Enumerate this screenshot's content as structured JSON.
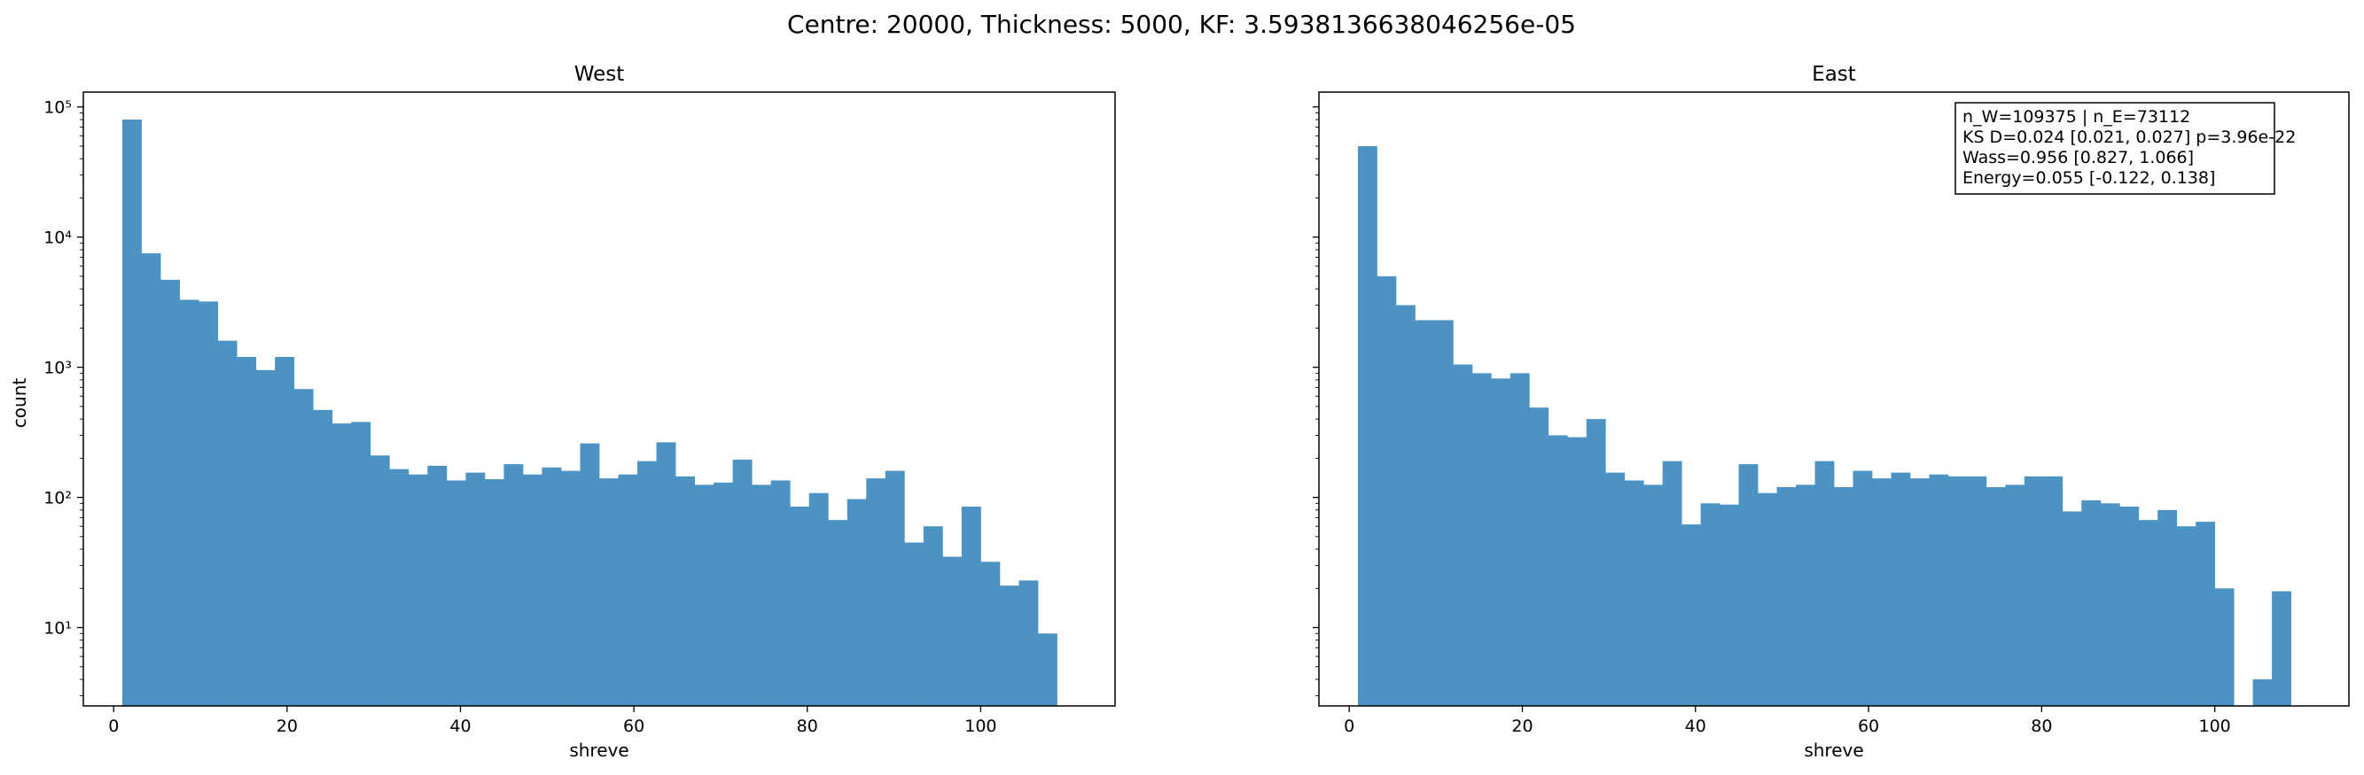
{
  "figure": {
    "suptitle": "Centre: 20000, Thickness: 5000, KF: 3.5938136638046256e-05"
  },
  "chart_data": [
    {
      "type": "bar",
      "title": "West",
      "xlabel": "shreve",
      "ylabel": "count",
      "yscale": "log",
      "xlim": [
        -3.5,
        115.5
      ],
      "ylim": [
        2.5,
        130000
      ],
      "xticks": [
        0,
        20,
        40,
        60,
        80,
        100
      ],
      "yticks": [
        {
          "value": 10,
          "label": "10¹"
        },
        {
          "value": 100,
          "label": "10²"
        },
        {
          "value": 1000,
          "label": "10³"
        },
        {
          "value": 10000,
          "label": "10⁴"
        },
        {
          "value": 100000,
          "label": "10⁵"
        }
      ],
      "bin_edges": [
        1,
        3.2,
        5.4,
        7.6,
        9.8,
        12,
        14.2,
        16.4,
        18.6,
        20.8,
        23,
        25.2,
        27.4,
        29.6,
        31.8,
        34,
        36.2,
        38.4,
        40.6,
        42.8,
        45,
        47.2,
        49.4,
        51.6,
        53.8,
        56,
        58.2,
        60.4,
        62.6,
        64.8,
        67,
        69.2,
        71.4,
        73.6,
        75.8,
        78,
        80.2,
        82.4,
        84.6,
        86.8,
        89,
        91.2,
        93.4,
        95.6,
        97.8,
        100,
        102.2,
        104.4,
        106.6,
        108.8,
        111
      ],
      "counts": [
        80000,
        7500,
        4700,
        3300,
        3200,
        1600,
        1200,
        950,
        1200,
        680,
        470,
        370,
        380,
        210,
        165,
        150,
        175,
        135,
        155,
        138,
        180,
        150,
        170,
        160,
        260,
        140,
        150,
        190,
        265,
        145,
        125,
        130,
        195,
        125,
        135,
        85,
        108,
        67,
        97,
        140,
        160,
        45,
        60,
        35,
        85,
        32,
        21,
        23,
        9,
        0
      ],
      "color": "#4c93c3"
    },
    {
      "type": "bar",
      "title": "East",
      "xlabel": "shreve",
      "ylabel": "",
      "yscale": "log",
      "xlim": [
        -3.5,
        115.5
      ],
      "ylim": [
        2.5,
        130000
      ],
      "xticks": [
        0,
        20,
        40,
        60,
        80,
        100
      ],
      "bin_edges": [
        1,
        3.2,
        5.4,
        7.6,
        9.8,
        12,
        14.2,
        16.4,
        18.6,
        20.8,
        23,
        25.2,
        27.4,
        29.6,
        31.8,
        34,
        36.2,
        38.4,
        40.6,
        42.8,
        45,
        47.2,
        49.4,
        51.6,
        53.8,
        56,
        58.2,
        60.4,
        62.6,
        64.8,
        67,
        69.2,
        71.4,
        73.6,
        75.8,
        78,
        80.2,
        82.4,
        84.6,
        86.8,
        89,
        91.2,
        93.4,
        95.6,
        97.8,
        100,
        102.2,
        104.4,
        106.6,
        108.8,
        111
      ],
      "counts": [
        50000,
        5000,
        3000,
        2300,
        2300,
        1050,
        900,
        820,
        900,
        490,
        300,
        290,
        400,
        155,
        135,
        125,
        190,
        62,
        90,
        88,
        180,
        108,
        120,
        125,
        190,
        120,
        160,
        140,
        155,
        140,
        150,
        145,
        145,
        120,
        125,
        145,
        145,
        78,
        95,
        90,
        85,
        67,
        80,
        60,
        65,
        20,
        0,
        4,
        19,
        0
      ],
      "color": "#4c93c3",
      "annotation": [
        "n_W=109375 | n_E=73112",
        "KS D=0.024 [0.021, 0.027]  p=3.96e-22",
        "Wass=0.956 [0.827, 1.066]",
        "Energy=0.055 [-0.122, 0.138]"
      ]
    }
  ]
}
